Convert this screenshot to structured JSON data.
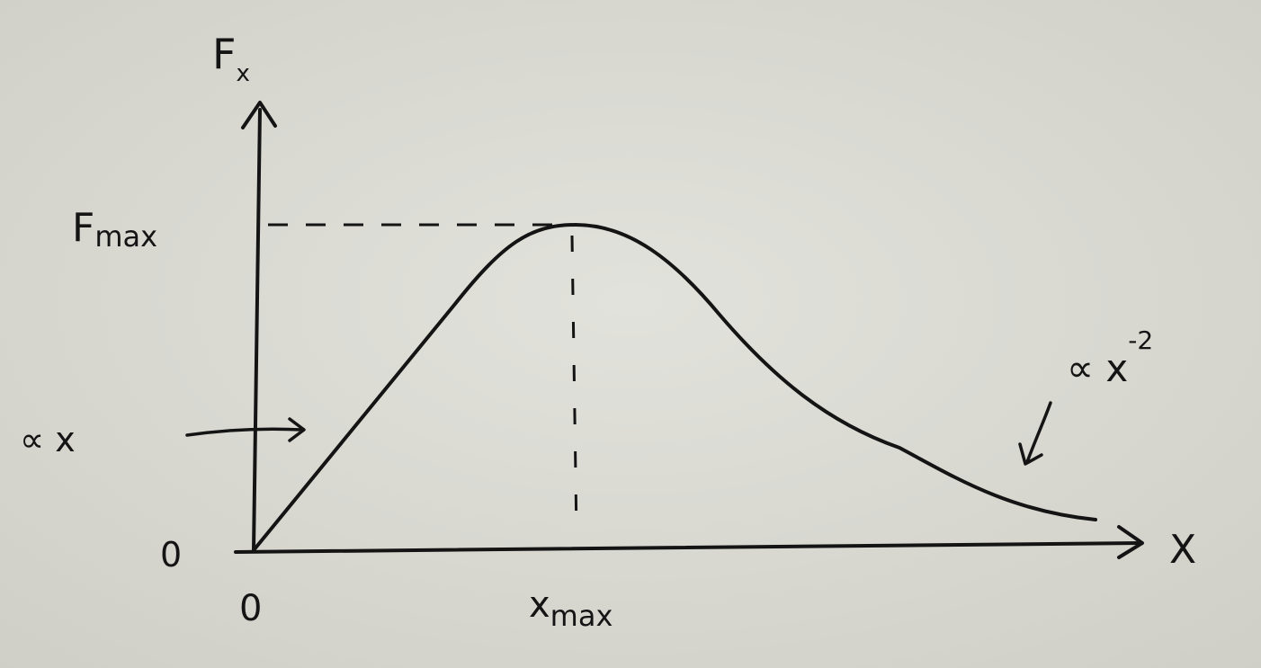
{
  "diagram": {
    "y_axis_label": {
      "main": "F",
      "sub": "x"
    },
    "x_axis_label": "X",
    "origin_y_label": "0",
    "origin_x_label": "0",
    "peak_y_label": {
      "main": "F",
      "sub": "max"
    },
    "peak_x_label": {
      "main": "x",
      "sub": "max"
    },
    "rising_annotation": "∝ x",
    "tail_annotation": {
      "main": "∝ x",
      "exp": "-2"
    }
  },
  "colors": {
    "ink": "#141414",
    "paper": "#d9d9d2"
  }
}
